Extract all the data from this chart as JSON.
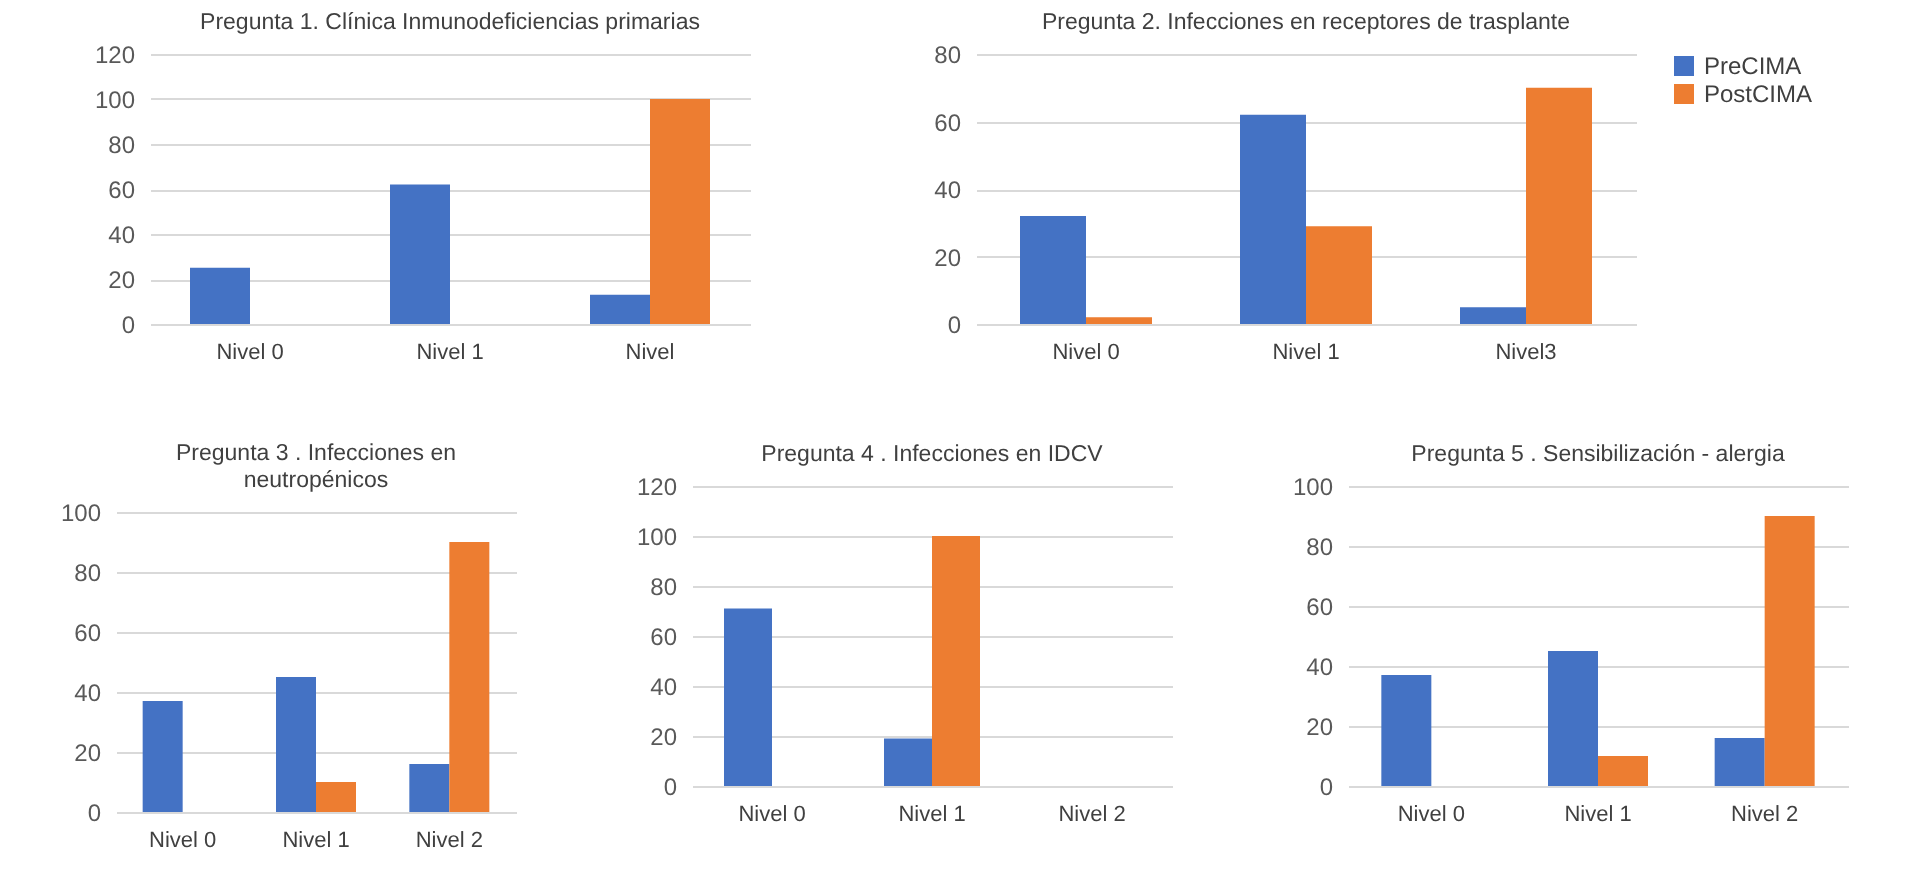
{
  "chart_data": [
    {
      "type": "bar",
      "title": "Pregunta 1. Clínica Inmunodeficiencias primarias",
      "categories": [
        "Nivel 0",
        "Nivel 1",
        "Nivel"
      ],
      "series": [
        {
          "color": "#4472c4",
          "values": [
            25,
            62,
            13
          ]
        },
        {
          "color": "#ed7d31",
          "values": [
            0,
            0,
            100
          ]
        }
      ],
      "ylim": [
        0,
        120
      ],
      "yticks": [
        0,
        20,
        40,
        60,
        80,
        100,
        120
      ],
      "grid": "y"
    },
    {
      "type": "bar",
      "title": "Pregunta 2. Infecciones en receptores de trasplante",
      "categories": [
        "Nivel 0",
        "Nivel 1",
        "Nivel3"
      ],
      "series": [
        {
          "name": "PreCIMA",
          "color": "#4472c4",
          "values": [
            32,
            62,
            5
          ]
        },
        {
          "name": "PostCIMA",
          "color": "#ed7d31",
          "values": [
            2,
            29,
            70
          ]
        }
      ],
      "ylim": [
        0,
        80
      ],
      "yticks": [
        0,
        20,
        40,
        60,
        80
      ],
      "grid": "y",
      "legend": "right"
    },
    {
      "type": "bar",
      "title": "Pregunta 3 . Infecciones en neutropénicos",
      "categories": [
        "Nivel 0",
        "Nivel 1",
        "Nivel 2"
      ],
      "series": [
        {
          "color": "#4472c4",
          "values": [
            37,
            45,
            16
          ]
        },
        {
          "color": "#ed7d31",
          "values": [
            0,
            10,
            90
          ]
        }
      ],
      "ylim": [
        0,
        100
      ],
      "yticks": [
        0,
        20,
        40,
        60,
        80,
        100
      ],
      "grid": "y"
    },
    {
      "type": "bar",
      "title": "Pregunta 4 . Infecciones en IDCV",
      "categories": [
        "Nivel 0",
        "Nivel 1",
        "Nivel 2"
      ],
      "series": [
        {
          "color": "#4472c4",
          "values": [
            71,
            19,
            0
          ]
        },
        {
          "color": "#ed7d31",
          "values": [
            0,
            100,
            0
          ]
        }
      ],
      "ylim": [
        0,
        120
      ],
      "yticks": [
        0,
        20,
        40,
        60,
        80,
        100,
        120
      ],
      "grid": "y"
    },
    {
      "type": "bar",
      "title": "Pregunta 5 . Sensibilización - alergia",
      "categories": [
        "Nivel 0",
        "Nivel 1",
        "Nivel 2"
      ],
      "series": [
        {
          "color": "#4472c4",
          "values": [
            37,
            45,
            16
          ]
        },
        {
          "color": "#ed7d31",
          "values": [
            0,
            10,
            90
          ]
        }
      ],
      "ylim": [
        0,
        100
      ],
      "yticks": [
        0,
        20,
        40,
        60,
        80,
        100
      ],
      "grid": "y"
    }
  ]
}
